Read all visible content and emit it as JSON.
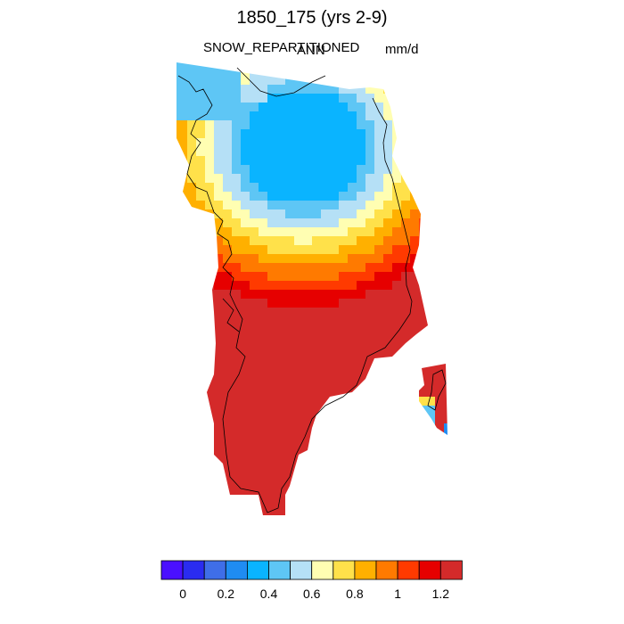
{
  "title": "1850_175 (yrs 2-9)",
  "variable": "SNOW_REPARTITIONED",
  "season": "ANN",
  "units": "mm/d",
  "legend": {
    "colors": [
      "#4a10ff",
      "#2a2cf0",
      "#3f6ee8",
      "#1f8cf2",
      "#0ab4ff",
      "#5ec6f5",
      "#b5e0f6",
      "#fffeb2",
      "#ffe14a",
      "#ffb000",
      "#ff7a00",
      "#ff3a00",
      "#e60000",
      "#d42a2a"
    ],
    "ticks": [
      "0",
      "0.2",
      "0.4",
      "0.6",
      "0.8",
      "1",
      "1.2"
    ]
  },
  "map": {
    "region": "Greenland",
    "palette": [
      "#4a10ff",
      "#2a2cf0",
      "#3f6ee8",
      "#1f8cf2",
      "#0ab4ff",
      "#5ec6f5",
      "#b5e0f6",
      "#fffeb2",
      "#ffe14a",
      "#ffb000",
      "#ff7a00",
      "#ff3a00",
      "#e60000",
      "#d42a2a"
    ]
  }
}
